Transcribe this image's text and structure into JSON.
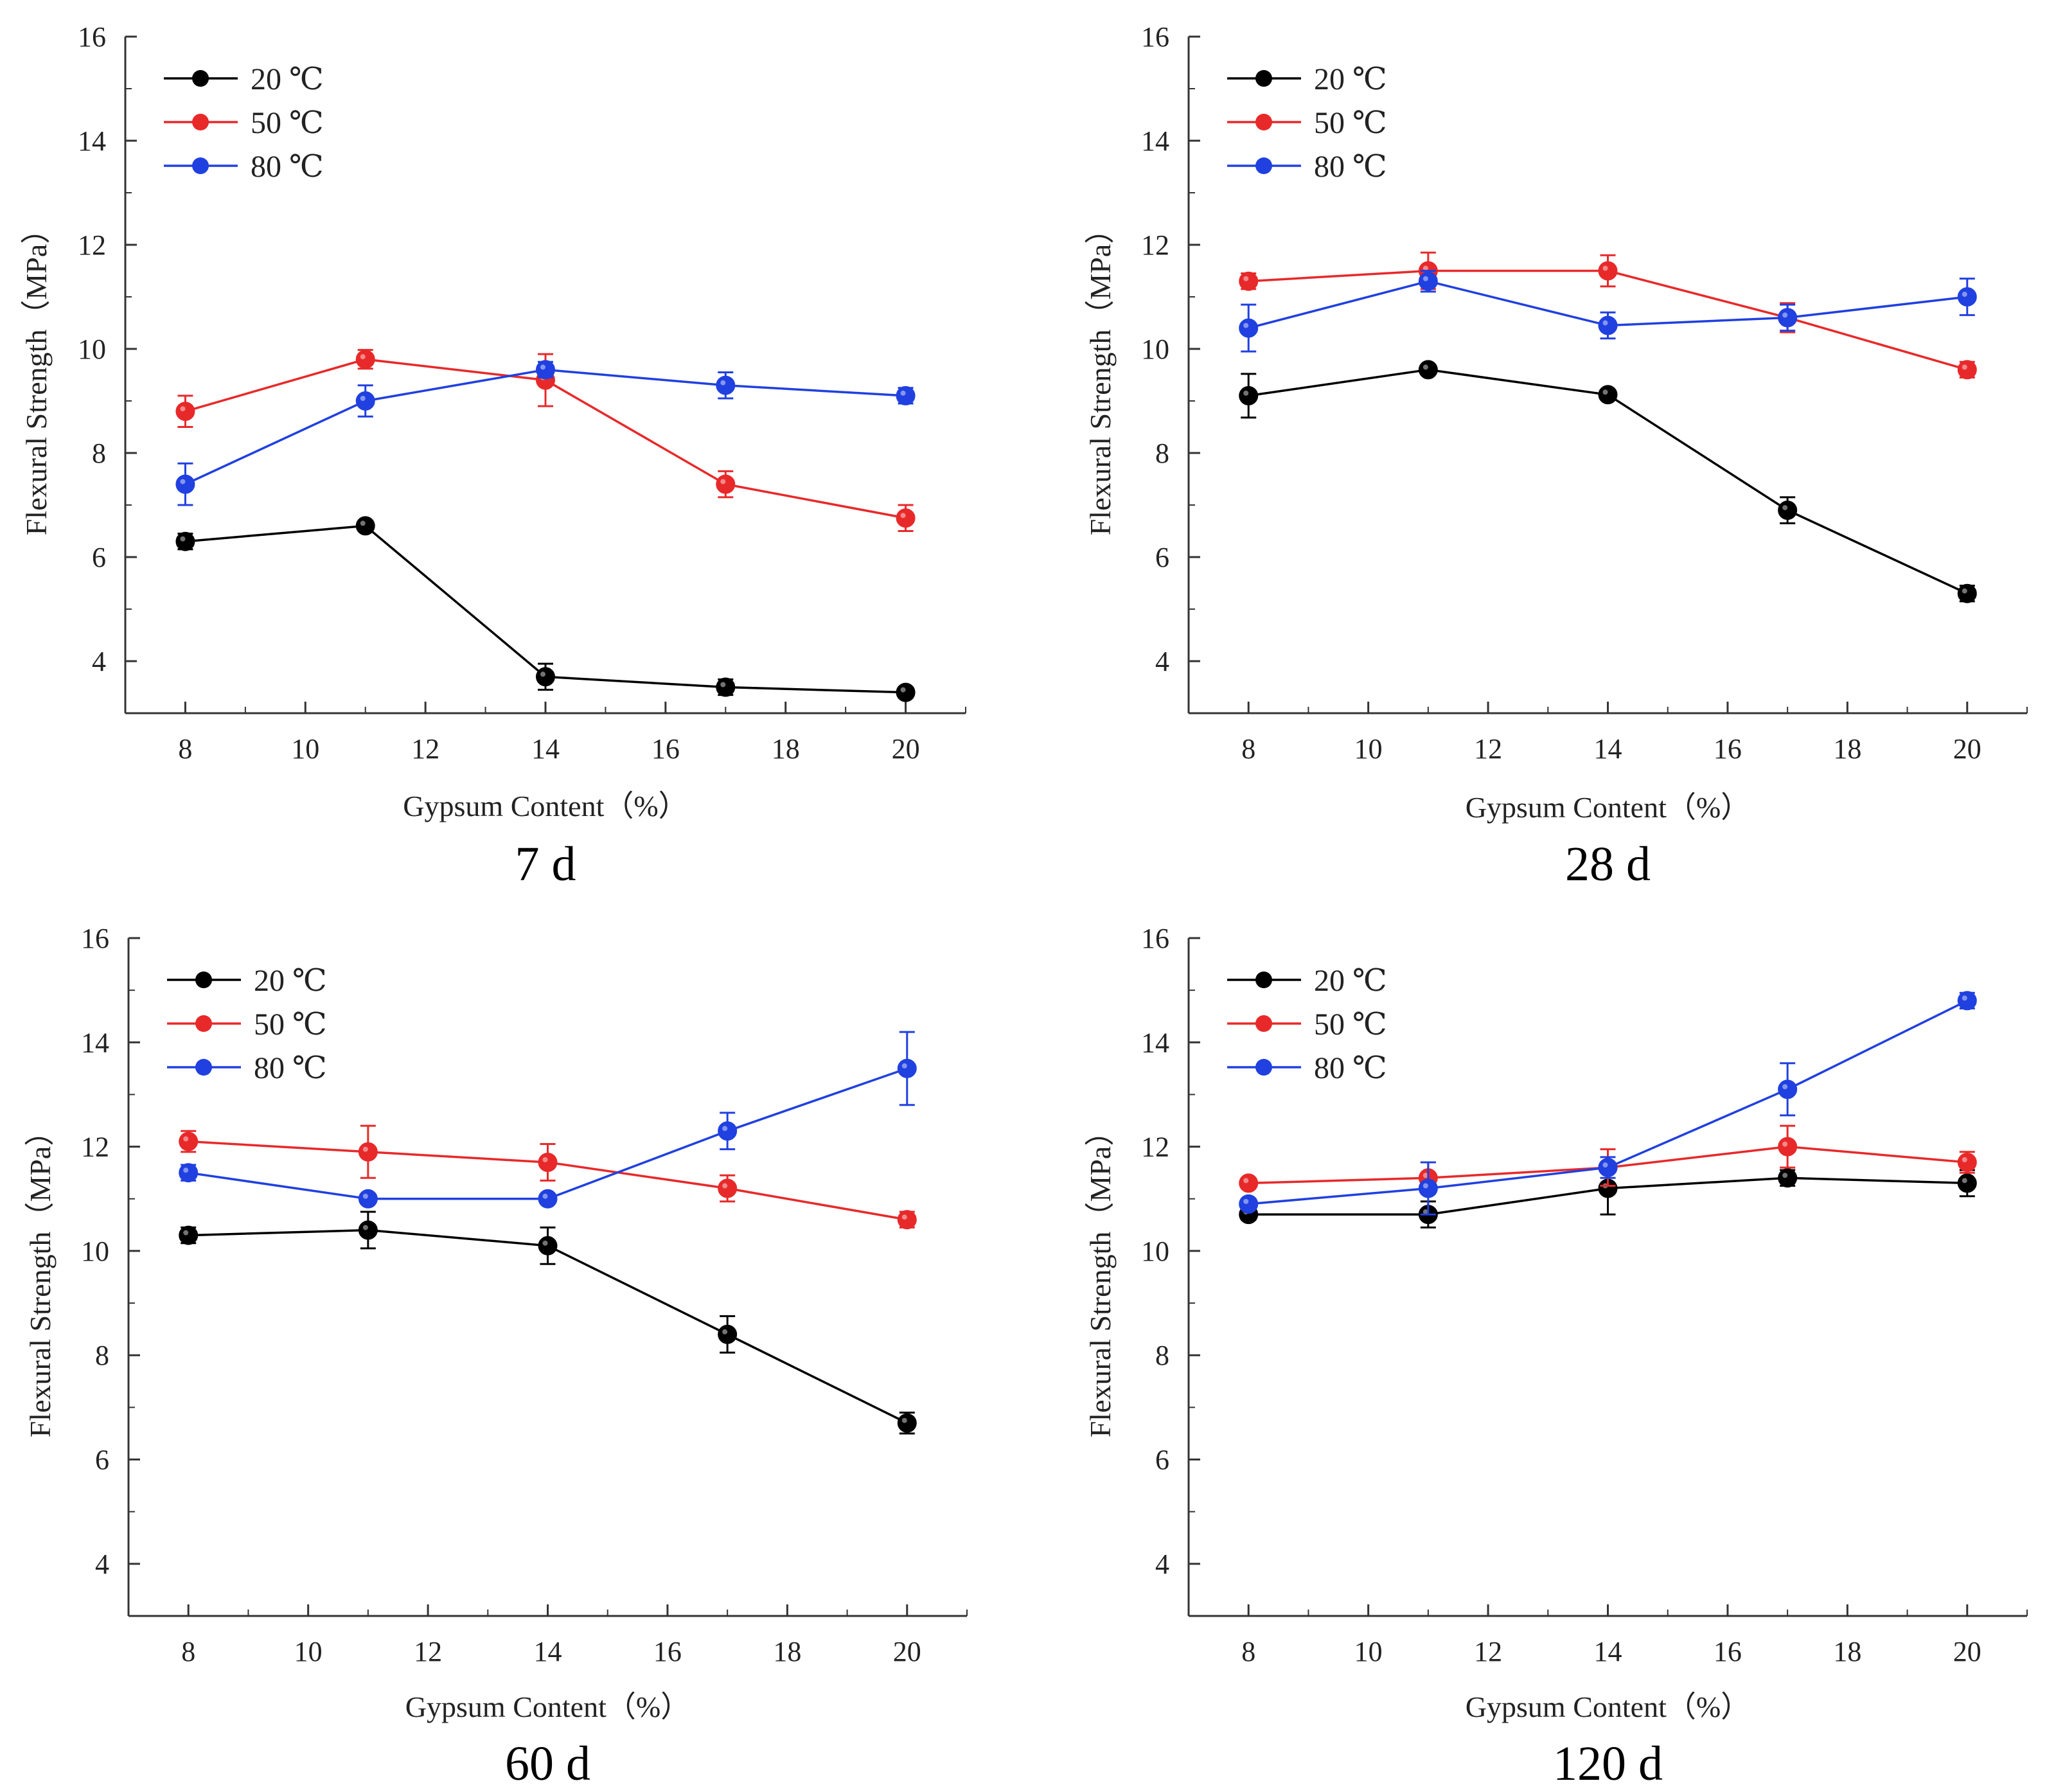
{
  "chart_data": [
    {
      "type": "line",
      "caption": "7 d",
      "xlabel": "Gypsum Content（%）",
      "ylabel": "Flexural Strength（MPa）",
      "xlim": [
        7,
        21
      ],
      "ylim": [
        3,
        16
      ],
      "xticks": [
        8,
        10,
        12,
        14,
        16,
        18,
        20
      ],
      "yticks": [
        4,
        6,
        8,
        10,
        12,
        14,
        16
      ],
      "legend_position": "top-left",
      "x": [
        8,
        11,
        14,
        17,
        20
      ],
      "series": [
        {
          "name": "20 ℃",
          "color": "#000000",
          "values": [
            6.3,
            6.6,
            3.7,
            3.5,
            3.4
          ],
          "errors": [
            0.15,
            0.08,
            0.25,
            0.15,
            0.1
          ]
        },
        {
          "name": "50 ℃",
          "color": "#e8292a",
          "values": [
            8.8,
            9.8,
            9.4,
            7.4,
            6.75
          ],
          "errors": [
            0.3,
            0.18,
            0.5,
            0.25,
            0.25
          ]
        },
        {
          "name": "80 ℃",
          "color": "#2040e0",
          "values": [
            7.4,
            9.0,
            9.6,
            9.3,
            9.1
          ],
          "errors": [
            0.4,
            0.3,
            0.15,
            0.25,
            0.15
          ]
        }
      ]
    },
    {
      "type": "line",
      "caption": "28 d",
      "xlabel": "Gypsum Content（%）",
      "ylabel": "Flexural Strength（MPa）",
      "xlim": [
        7,
        21
      ],
      "ylim": [
        3,
        16
      ],
      "xticks": [
        8,
        10,
        12,
        14,
        16,
        18,
        20
      ],
      "yticks": [
        4,
        6,
        8,
        10,
        12,
        14,
        16
      ],
      "legend_position": "top-left",
      "x": [
        8,
        11,
        14,
        17,
        20
      ],
      "series": [
        {
          "name": "20 ℃",
          "color": "#000000",
          "values": [
            9.1,
            9.6,
            9.12,
            6.9,
            5.3
          ],
          "errors": [
            0.42,
            0.08,
            0.08,
            0.25,
            0.15
          ]
        },
        {
          "name": "50 ℃",
          "color": "#e8292a",
          "values": [
            11.3,
            11.5,
            11.5,
            10.6,
            9.6
          ],
          "errors": [
            0.15,
            0.35,
            0.3,
            0.28,
            0.15
          ]
        },
        {
          "name": "80 ℃",
          "color": "#2040e0",
          "values": [
            10.4,
            11.3,
            10.45,
            10.6,
            11.0
          ],
          "errors": [
            0.45,
            0.2,
            0.25,
            0.25,
            0.35
          ]
        }
      ]
    },
    {
      "type": "line",
      "caption": "60 d",
      "xlabel": "Gypsum Content（%）",
      "ylabel": "Flexural Strength（MPa）",
      "xlim": [
        7,
        21
      ],
      "ylim": [
        3,
        16
      ],
      "xticks": [
        8,
        10,
        12,
        14,
        16,
        18,
        20
      ],
      "yticks": [
        4,
        6,
        8,
        10,
        12,
        14,
        16
      ],
      "legend_position": "top-left",
      "x": [
        8,
        11,
        14,
        17,
        20
      ],
      "series": [
        {
          "name": "20 ℃",
          "color": "#000000",
          "values": [
            10.3,
            10.4,
            10.1,
            8.4,
            6.7
          ],
          "errors": [
            0.15,
            0.35,
            0.35,
            0.35,
            0.2
          ]
        },
        {
          "name": "50 ℃",
          "color": "#e8292a",
          "values": [
            12.1,
            11.9,
            11.7,
            11.2,
            10.6
          ],
          "errors": [
            0.2,
            0.5,
            0.35,
            0.25,
            0.15
          ]
        },
        {
          "name": "80 ℃",
          "color": "#2040e0",
          "values": [
            11.5,
            11.0,
            11.0,
            12.3,
            13.5
          ],
          "errors": [
            0.15,
            0.05,
            0.05,
            0.35,
            0.7
          ]
        }
      ]
    },
    {
      "type": "line",
      "caption": "120 d",
      "xlabel": "Gypsum Content（%）",
      "ylabel": "Flexural Strength（MPa）",
      "xlim": [
        7,
        21
      ],
      "ylim": [
        3,
        16
      ],
      "xticks": [
        8,
        10,
        12,
        14,
        16,
        18,
        20
      ],
      "yticks": [
        4,
        6,
        8,
        10,
        12,
        14,
        16
      ],
      "legend_position": "top-left",
      "x": [
        8,
        11,
        14,
        17,
        20
      ],
      "series": [
        {
          "name": "20 ℃",
          "color": "#000000",
          "values": [
            10.7,
            10.7,
            11.2,
            11.4,
            11.3
          ],
          "errors": [
            0.1,
            0.25,
            0.5,
            0.15,
            0.25
          ]
        },
        {
          "name": "50 ℃",
          "color": "#e8292a",
          "values": [
            11.3,
            11.4,
            11.6,
            12.0,
            11.7
          ],
          "errors": [
            0.1,
            0.3,
            0.35,
            0.4,
            0.2
          ]
        },
        {
          "name": "80 ℃",
          "color": "#2040e0",
          "values": [
            10.9,
            11.2,
            11.6,
            13.1,
            14.8
          ],
          "errors": [
            0.1,
            0.5,
            0.2,
            0.5,
            0.15
          ]
        }
      ]
    }
  ]
}
